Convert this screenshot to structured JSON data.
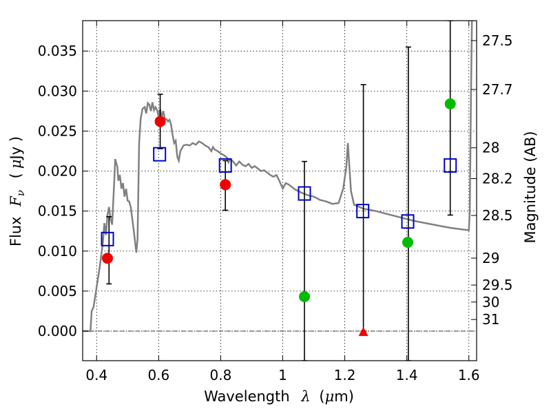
{
  "chart_data": {
    "type": "scatter",
    "xlabel": "Wavelength",
    "xlabel_symbol": "λ",
    "xlabel_unit_open": "(",
    "xlabel_unit_mu": "μ",
    "xlabel_unit_rest": "m)",
    "ylabel": "Flux",
    "ylabel_symbol": "F",
    "ylabel_symbol_sub": "ν",
    "ylabel_unit_open": "(",
    "ylabel_unit_mu": "μ",
    "ylabel_unit_rest": "Jy )",
    "y2label": "Magnitude (AB)",
    "xlim": [
      0.355,
      1.625
    ],
    "ylim": [
      -0.0037,
      0.0388
    ],
    "grid": true,
    "x_ticks": [
      {
        "value": 0.4,
        "label": "0.4"
      },
      {
        "value": 0.6,
        "label": "0.6"
      },
      {
        "value": 0.8,
        "label": "0.8"
      },
      {
        "value": 1.0,
        "label": "1"
      },
      {
        "value": 1.2,
        "label": "1.2"
      },
      {
        "value": 1.4,
        "label": "1.4"
      },
      {
        "value": 1.6,
        "label": "1.6"
      }
    ],
    "y_ticks": [
      {
        "value": 0.0,
        "label": "0.000"
      },
      {
        "value": 0.005,
        "label": "0.005"
      },
      {
        "value": 0.01,
        "label": "0.010"
      },
      {
        "value": 0.015,
        "label": "0.015"
      },
      {
        "value": 0.02,
        "label": "0.020"
      },
      {
        "value": 0.025,
        "label": "0.025"
      },
      {
        "value": 0.03,
        "label": "0.030"
      },
      {
        "value": 0.035,
        "label": "0.035"
      }
    ],
    "mag_ticks": [
      {
        "mag": 27.5,
        "label": "27.5"
      },
      {
        "mag": 27.7,
        "label": "27.7"
      },
      {
        "mag": 28.0,
        "label": "28"
      },
      {
        "mag": 28.2,
        "label": "28.2"
      },
      {
        "mag": 28.5,
        "label": "28.5"
      },
      {
        "mag": 29.0,
        "label": "29"
      },
      {
        "mag": 29.5,
        "label": "29.5"
      },
      {
        "mag": 30.0,
        "label": "30"
      },
      {
        "mag": 31.0,
        "label": "31"
      }
    ],
    "colors": {
      "model": "#808080",
      "detection": "#00bb00",
      "nondetection": "#ee0000",
      "model_band": "#0000cc",
      "errorbar": "#000000",
      "zero_line": "#000000"
    },
    "series": [
      {
        "type": "line",
        "points": [
          [
            0.355,
            0.0
          ],
          [
            0.37,
            0.0
          ],
          [
            0.38,
            0.0
          ],
          [
            0.384,
            0.0025
          ],
          [
            0.39,
            0.003
          ],
          [
            0.4,
            0.0055
          ],
          [
            0.41,
            0.008
          ],
          [
            0.42,
            0.011
          ],
          [
            0.425,
            0.0135
          ],
          [
            0.43,
            0.012
          ],
          [
            0.435,
            0.0145
          ],
          [
            0.44,
            0.0155
          ],
          [
            0.445,
            0.014
          ],
          [
            0.45,
            0.0133
          ],
          [
            0.457,
            0.0188
          ],
          [
            0.46,
            0.0215
          ],
          [
            0.467,
            0.0205
          ],
          [
            0.47,
            0.0188
          ],
          [
            0.475,
            0.0195
          ],
          [
            0.48,
            0.0178
          ],
          [
            0.485,
            0.0185
          ],
          [
            0.49,
            0.0168
          ],
          [
            0.495,
            0.0178
          ],
          [
            0.5,
            0.0163
          ],
          [
            0.505,
            0.0162
          ],
          [
            0.51,
            0.0155
          ],
          [
            0.515,
            0.014
          ],
          [
            0.52,
            0.0125
          ],
          [
            0.528,
            0.0098
          ],
          [
            0.532,
            0.0115
          ],
          [
            0.537,
            0.0235
          ],
          [
            0.542,
            0.0265
          ],
          [
            0.548,
            0.0278
          ],
          [
            0.555,
            0.028
          ],
          [
            0.56,
            0.0272
          ],
          [
            0.565,
            0.0285
          ],
          [
            0.57,
            0.0283
          ],
          [
            0.575,
            0.0275
          ],
          [
            0.58,
            0.0286
          ],
          [
            0.585,
            0.0276
          ],
          [
            0.59,
            0.028
          ],
          [
            0.595,
            0.0276
          ],
          [
            0.6,
            0.0268
          ],
          [
            0.605,
            0.0277
          ],
          [
            0.61,
            0.0267
          ],
          [
            0.615,
            0.0275
          ],
          [
            0.62,
            0.0265
          ],
          [
            0.625,
            0.0265
          ],
          [
            0.63,
            0.0262
          ],
          [
            0.635,
            0.0264
          ],
          [
            0.64,
            0.0258
          ],
          [
            0.645,
            0.0245
          ],
          [
            0.65,
            0.0235
          ],
          [
            0.655,
            0.0238
          ],
          [
            0.66,
            0.0218
          ],
          [
            0.665,
            0.0213
          ],
          [
            0.67,
            0.0225
          ],
          [
            0.68,
            0.0232
          ],
          [
            0.69,
            0.0233
          ],
          [
            0.7,
            0.0232
          ],
          [
            0.71,
            0.0235
          ],
          [
            0.72,
            0.0233
          ],
          [
            0.73,
            0.0237
          ],
          [
            0.74,
            0.0235
          ],
          [
            0.75,
            0.0232
          ],
          [
            0.76,
            0.023
          ],
          [
            0.77,
            0.0225
          ],
          [
            0.775,
            0.023
          ],
          [
            0.78,
            0.0227
          ],
          [
            0.79,
            0.0225
          ],
          [
            0.8,
            0.0222
          ],
          [
            0.81,
            0.022
          ],
          [
            0.82,
            0.0217
          ],
          [
            0.825,
            0.0211
          ],
          [
            0.83,
            0.0215
          ],
          [
            0.84,
            0.0212
          ],
          [
            0.85,
            0.0207
          ],
          [
            0.86,
            0.0212
          ],
          [
            0.87,
            0.0208
          ],
          [
            0.88,
            0.0206
          ],
          [
            0.89,
            0.0209
          ],
          [
            0.9,
            0.0204
          ],
          [
            0.91,
            0.0206
          ],
          [
            0.92,
            0.0203
          ],
          [
            0.93,
            0.02
          ],
          [
            0.94,
            0.0201
          ],
          [
            0.95,
            0.0198
          ],
          [
            0.96,
            0.0195
          ],
          [
            0.97,
            0.0193
          ],
          [
            0.98,
            0.0195
          ],
          [
            0.99,
            0.0187
          ],
          [
            1.0,
            0.0178
          ],
          [
            1.01,
            0.0185
          ],
          [
            1.02,
            0.0183
          ],
          [
            1.03,
            0.018
          ],
          [
            1.04,
            0.0177
          ],
          [
            1.06,
            0.0173
          ],
          [
            1.08,
            0.017
          ],
          [
            1.1,
            0.0168
          ],
          [
            1.12,
            0.0164
          ],
          [
            1.14,
            0.0162
          ],
          [
            1.16,
            0.0159
          ],
          [
            1.18,
            0.016
          ],
          [
            1.195,
            0.0178
          ],
          [
            1.205,
            0.0205
          ],
          [
            1.21,
            0.0235
          ],
          [
            1.215,
            0.0205
          ],
          [
            1.22,
            0.0175
          ],
          [
            1.23,
            0.0158
          ],
          [
            1.26,
            0.0153
          ],
          [
            1.3,
            0.015
          ],
          [
            1.34,
            0.0146
          ],
          [
            1.38,
            0.0142
          ],
          [
            1.42,
            0.0138
          ],
          [
            1.46,
            0.0135
          ],
          [
            1.5,
            0.0132
          ],
          [
            1.54,
            0.0129
          ],
          [
            1.58,
            0.0127
          ],
          [
            1.6,
            0.0126
          ],
          [
            1.603,
            0.015
          ],
          [
            1.607,
            0.03
          ],
          [
            1.61,
            0.0388
          ]
        ]
      },
      {
        "type": "errorbar",
        "points": [
          {
            "x": 0.44,
            "y_low": 0.0059,
            "y_high": 0.0143
          },
          {
            "x": 0.605,
            "y_low": 0.0228,
            "y_high": 0.0296
          },
          {
            "x": 0.815,
            "y_low": 0.0151,
            "y_high": 0.0213
          },
          {
            "x": 1.07,
            "y_low": -0.0037,
            "y_high": 0.0212
          },
          {
            "x": 1.26,
            "y_low": 0.0,
            "y_high": 0.0308
          },
          {
            "x": 1.405,
            "y_low": -0.0037,
            "y_high": 0.0355
          },
          {
            "x": 1.54,
            "y_low": 0.0145,
            "y_high": 0.0388
          }
        ]
      },
      {
        "type": "scatter",
        "marker": "open-square",
        "points": [
          [
            0.435,
            0.0115
          ],
          [
            0.603,
            0.0221
          ],
          [
            0.815,
            0.0207
          ],
          [
            1.07,
            0.0172
          ],
          [
            1.258,
            0.015
          ],
          [
            1.403,
            0.0137
          ],
          [
            1.54,
            0.0207
          ]
        ]
      },
      {
        "type": "scatter",
        "marker": "filled-circle",
        "points": [
          [
            0.435,
            0.0091
          ],
          [
            0.605,
            0.0262
          ],
          [
            0.815,
            0.0183
          ]
        ]
      },
      {
        "type": "scatter",
        "marker": "filled-circle",
        "points": [
          [
            1.07,
            0.0043
          ],
          [
            1.403,
            0.0111
          ],
          [
            1.54,
            0.0284
          ]
        ]
      },
      {
        "type": "scatter",
        "marker": "filled-triangle",
        "points": [
          [
            1.26,
            -0.0001
          ]
        ]
      }
    ]
  }
}
